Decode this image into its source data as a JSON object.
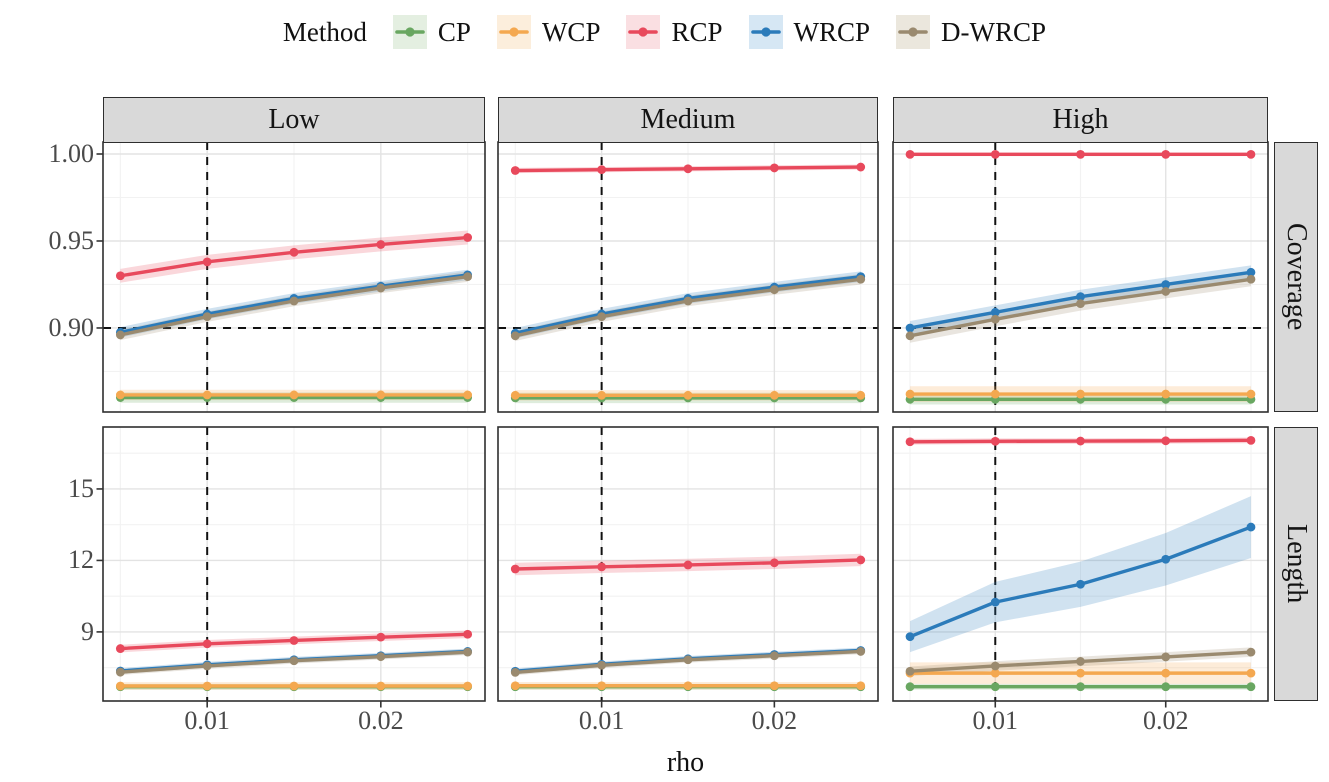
{
  "legend": {
    "title": "Method",
    "items": [
      {
        "label": "CP",
        "color": "#69A761",
        "key_bg": "#E4EFE1"
      },
      {
        "label": "WCP",
        "color": "#F4A850",
        "key_bg": "#FCEEDC"
      },
      {
        "label": "RCP",
        "color": "#E8495C",
        "key_bg": "#FADFE2"
      },
      {
        "label": "WRCP",
        "color": "#2B7BBA",
        "key_bg": "#D6E7F4"
      },
      {
        "label": "D-WRCP",
        "color": "#9A8A6F",
        "key_bg": "#EBE7DD"
      }
    ]
  },
  "chart_data": {
    "type": "line",
    "xlabel": "rho",
    "x": [
      0.005,
      0.01,
      0.015,
      0.02,
      0.025
    ],
    "x_range": [
      0.004,
      0.026
    ],
    "x_tick_labels": [
      "0.01",
      "0.02"
    ],
    "x_tick_values": [
      0.01,
      0.02
    ],
    "x_minor": [
      0.005,
      0.015,
      0.025
    ],
    "facets_cols": [
      "Low",
      "Medium",
      "High"
    ],
    "facets_rows": [
      "Coverage",
      "Length"
    ],
    "legend_position": "top",
    "grid": true,
    "reference": {
      "vline_x": 0.01,
      "hline_y": 0.9,
      "hline_row": "Coverage"
    },
    "rows": [
      {
        "name": "Coverage",
        "y_tick_labels": [
          "1.00",
          "0.95",
          "0.90"
        ],
        "y_tick_values": [
          1.0,
          0.95,
          0.9
        ],
        "y_minor": [
          0.875,
          0.925,
          0.975
        ],
        "y_range": [
          0.8517,
          1.0069
        ]
      },
      {
        "name": "Length",
        "y_tick_labels": [
          "15",
          "12",
          "9"
        ],
        "y_tick_values": [
          15,
          12,
          9
        ],
        "y_minor": [
          7.5,
          10.5,
          13.5,
          16.5
        ],
        "y_range": [
          6.1,
          17.6
        ]
      }
    ],
    "panels": [
      {
        "row": "Coverage",
        "col": "Low",
        "series": [
          {
            "name": "CP",
            "values": [
              0.86,
              0.86,
              0.86,
              0.86,
              0.86
            ],
            "ribbon": 0.003
          },
          {
            "name": "WCP",
            "values": [
              0.8615,
              0.8615,
              0.8615,
              0.8615,
              0.8615
            ],
            "ribbon": 0.003
          },
          {
            "name": "RCP",
            "values": [
              0.93,
              0.938,
              0.9435,
              0.948,
              0.952
            ],
            "ribbon": 0.004
          },
          {
            "name": "WRCP",
            "values": [
              0.8975,
              0.908,
              0.917,
              0.924,
              0.9305
            ],
            "ribbon": 0.003
          },
          {
            "name": "D-WRCP",
            "values": [
              0.896,
              0.9065,
              0.9155,
              0.923,
              0.9295
            ],
            "ribbon": 0.003
          }
        ]
      },
      {
        "row": "Coverage",
        "col": "Medium",
        "series": [
          {
            "name": "CP",
            "values": [
              0.8598,
              0.8598,
              0.8598,
              0.8598,
              0.8598
            ],
            "ribbon": 0.003
          },
          {
            "name": "WCP",
            "values": [
              0.8613,
              0.8613,
              0.8613,
              0.8613,
              0.8613
            ],
            "ribbon": 0.003
          },
          {
            "name": "RCP",
            "values": [
              0.9905,
              0.991,
              0.9915,
              0.992,
              0.9925
            ],
            "ribbon": 0.0015
          },
          {
            "name": "WRCP",
            "values": [
              0.897,
              0.908,
              0.917,
              0.9235,
              0.9295
            ],
            "ribbon": 0.003
          },
          {
            "name": "D-WRCP",
            "values": [
              0.8955,
              0.9065,
              0.9155,
              0.922,
              0.928
            ],
            "ribbon": 0.003
          }
        ]
      },
      {
        "row": "Coverage",
        "col": "High",
        "series": [
          {
            "name": "CP",
            "values": [
              0.859,
              0.859,
              0.859,
              0.859,
              0.859
            ],
            "ribbon": 0.003
          },
          {
            "name": "WCP",
            "values": [
              0.862,
              0.862,
              0.862,
              0.862,
              0.862
            ],
            "ribbon": 0.0045
          },
          {
            "name": "RCP",
            "values": [
              0.9998,
              0.9998,
              0.9998,
              0.9998,
              0.9998
            ],
            "ribbon": 0.001
          },
          {
            "name": "WRCP",
            "values": [
              0.9,
              0.909,
              0.918,
              0.925,
              0.932
            ],
            "ribbon": 0.004
          },
          {
            "name": "D-WRCP",
            "values": [
              0.8955,
              0.905,
              0.914,
              0.921,
              0.928
            ],
            "ribbon": 0.004
          }
        ]
      },
      {
        "row": "Length",
        "col": "Low",
        "series": [
          {
            "name": "CP",
            "values": [
              6.7,
              6.7,
              6.7,
              6.7,
              6.7
            ],
            "ribbon": 0.12
          },
          {
            "name": "WCP",
            "values": [
              6.73,
              6.73,
              6.73,
              6.73,
              6.73
            ],
            "ribbon": 0.16
          },
          {
            "name": "RCP",
            "values": [
              8.3,
              8.5,
              8.64,
              8.78,
              8.9
            ],
            "ribbon": 0.16
          },
          {
            "name": "WRCP",
            "values": [
              7.36,
              7.62,
              7.83,
              8.0,
              8.18
            ],
            "ribbon": 0.12
          },
          {
            "name": "D-WRCP",
            "values": [
              7.31,
              7.57,
              7.79,
              7.96,
              8.15
            ],
            "ribbon": 0.12
          }
        ]
      },
      {
        "row": "Length",
        "col": "Medium",
        "series": [
          {
            "name": "CP",
            "values": [
              6.7,
              6.7,
              6.7,
              6.7,
              6.7
            ],
            "ribbon": 0.12
          },
          {
            "name": "WCP",
            "values": [
              6.74,
              6.74,
              6.74,
              6.74,
              6.74
            ],
            "ribbon": 0.16
          },
          {
            "name": "RCP",
            "values": [
              11.64,
              11.73,
              11.81,
              11.9,
              12.02
            ],
            "ribbon": 0.26
          },
          {
            "name": "WRCP",
            "values": [
              7.35,
              7.64,
              7.87,
              8.05,
              8.22
            ],
            "ribbon": 0.12
          },
          {
            "name": "D-WRCP",
            "values": [
              7.3,
              7.6,
              7.83,
              8.0,
              8.18
            ],
            "ribbon": 0.12
          }
        ]
      },
      {
        "row": "Length",
        "col": "High",
        "series": [
          {
            "name": "CP",
            "values": [
              6.7,
              6.7,
              6.7,
              6.7,
              6.7
            ],
            "ribbon": 0.12
          },
          {
            "name": "WCP",
            "values": [
              7.27,
              7.27,
              7.27,
              7.27,
              7.27
            ],
            "ribbon": 0.45
          },
          {
            "name": "RCP",
            "values": [
              16.98,
              17.0,
              17.01,
              17.02,
              17.04
            ],
            "ribbon": 0.12
          },
          {
            "name": "WRCP",
            "values": [
              8.8,
              10.25,
              11.0,
              12.05,
              13.4
            ],
            "ribbon": [
              0.65,
              0.85,
              0.95,
              1.1,
              1.3
            ]
          },
          {
            "name": "D-WRCP",
            "values": [
              7.35,
              7.57,
              7.76,
              7.95,
              8.15
            ],
            "ribbon": 0.2
          }
        ]
      }
    ]
  }
}
